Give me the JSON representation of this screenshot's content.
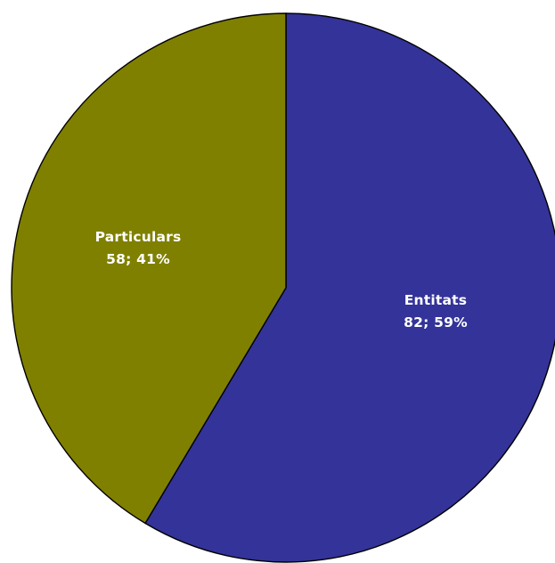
{
  "chart_data": {
    "type": "pie",
    "title": "",
    "slices": [
      {
        "name": "Entitats",
        "value": 82,
        "percent": "59%",
        "label_value": "82; 59%",
        "color": "#333399"
      },
      {
        "name": "Particulars",
        "value": 58,
        "percent": "41%",
        "label_value": "58; 41%",
        "color": "#808000"
      }
    ],
    "start_angle": "12 o'clock",
    "direction": "clockwise",
    "legend": "none",
    "outline_color": "#000000",
    "label_color": "#ffffff"
  }
}
